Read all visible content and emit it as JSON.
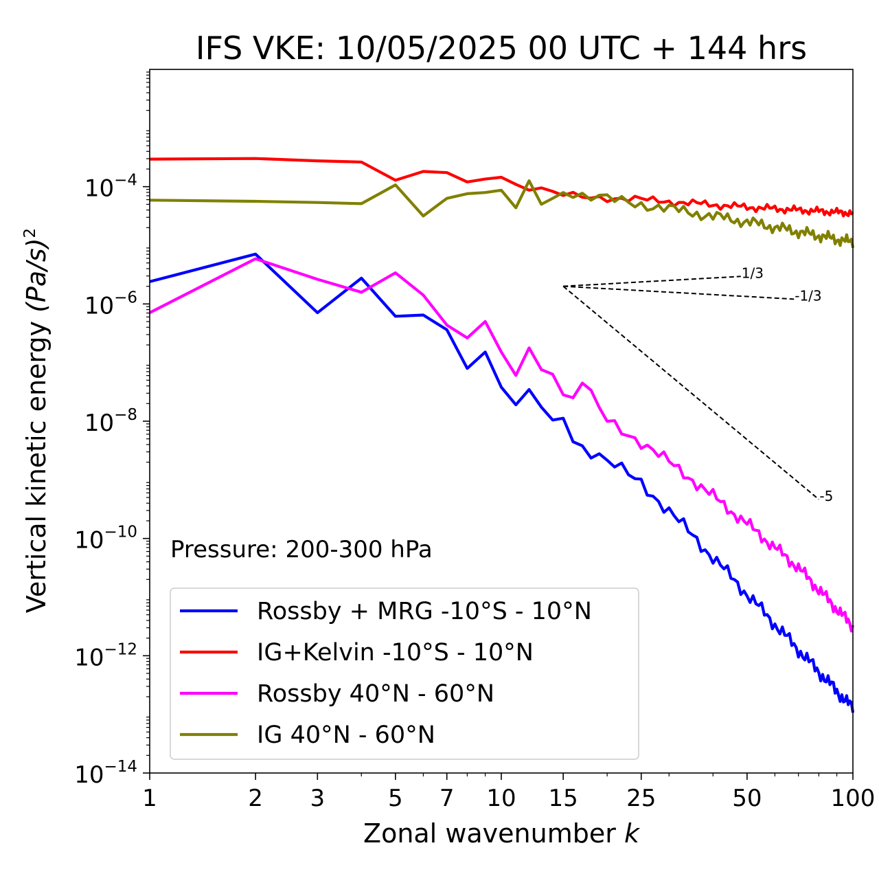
{
  "chart_data": {
    "type": "line",
    "title": "IFS VKE: 10/05/2025 00 UTC + 144 hrs",
    "xlabel": "Zonal wavenumber",
    "xlabel_var": "k",
    "ylabel": "Vertical kinetic energy",
    "ylabel_units": "(Pa/s)",
    "ylabel_power": "2",
    "xscale": "log",
    "yscale": "log",
    "xlim": [
      1,
      100
    ],
    "ylim": [
      1e-14,
      0.01
    ],
    "x_ticks": [
      1,
      2,
      3,
      5,
      7,
      10,
      15,
      25,
      50,
      100
    ],
    "x_tick_labels": [
      "1",
      "2",
      "3",
      "5",
      "7",
      "10",
      "15",
      "25",
      "50",
      "100"
    ],
    "y_ticks": [
      -14,
      -12,
      -10,
      -8,
      -6,
      -4
    ],
    "y_tick_base": "10",
    "y_tick_exponents": [
      "−14",
      "−12",
      "−10",
      "−8",
      "−6",
      "−4"
    ],
    "annotation": "Pressure: 200-300 hPa",
    "legend_position": "lower-left",
    "series": [
      {
        "name": "Rossby + MRG -10°S - 10°N",
        "color": "#0000ff"
      },
      {
        "name": "IG+Kelvin -10°S - 10°N",
        "color": "#ff0000"
      },
      {
        "name": "Rossby 40°N - 60°N",
        "color": "#ff00ff"
      },
      {
        "name": "IG 40°N - 60°N",
        "color": "#808000"
      }
    ],
    "reference_slopes": [
      {
        "label": "1/3",
        "slope": 0.3333,
        "x_start": 15,
        "y_start": 2e-06,
        "x_end": 48
      },
      {
        "label": "-1/3",
        "slope": -0.3333,
        "x_start": 15,
        "y_start": 2e-06,
        "x_end": 68
      },
      {
        "label": "-5",
        "slope": -5,
        "x_start": 15,
        "y_start": 2e-06,
        "x_end": 80
      }
    ]
  }
}
